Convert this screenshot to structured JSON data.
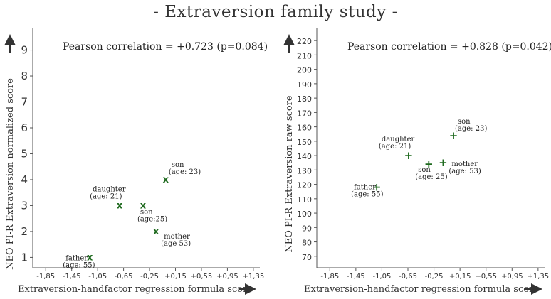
{
  "page_title": "- Extraversion family study -",
  "colors": {
    "marker": "#1f6a1f",
    "axis": "#555555",
    "text": "#222222"
  },
  "chart_data": [
    {
      "type": "scatter",
      "annotation": "Pearson correlation = +0.723 (p=0.084)",
      "xlabel": "Extraversion-handfactor regression formula score",
      "ylabel": "NEO PI-R Extraversion normalized score",
      "marker": "x",
      "x_ticks": [
        "-1,85",
        "-1,45",
        "-1,05",
        "-0,65",
        "-0,25",
        "+0,15",
        "+0,55",
        "+0,95",
        "+1,35"
      ],
      "y_ticks": [
        1,
        2,
        3,
        4,
        5,
        6,
        7,
        8,
        9
      ],
      "xlim": [
        -2.05,
        1.45
      ],
      "ylim": [
        0.6,
        9.7
      ],
      "points": [
        {
          "x": -1.17,
          "y": 1,
          "label": [
            "father",
            "(age: 55)"
          ]
        },
        {
          "x": -0.71,
          "y": 3,
          "label": [
            "daughter",
            "(age: 21)"
          ]
        },
        {
          "x": -0.35,
          "y": 3,
          "label": [
            "son",
            "(age:25)"
          ]
        },
        {
          "x": -0.15,
          "y": 2,
          "label": [
            "mother",
            "(age 53)"
          ]
        },
        {
          "x": 0.0,
          "y": 4,
          "label": [
            "son",
            "(age: 23)"
          ]
        }
      ]
    },
    {
      "type": "scatter",
      "annotation": "Pearson correlation = +0.828 (p=0.042)",
      "xlabel": "Extraversion-handfactor regression formula score",
      "ylabel": "NEO PI-R Extraversion raw score",
      "marker": "+",
      "x_ticks": [
        "-1,85",
        "-1,45",
        "-1,05",
        "-0,65",
        "-0,25",
        "+0,15",
        "+0,55",
        "+0,95",
        "+1,35"
      ],
      "y_ticks": [
        70,
        80,
        90,
        100,
        110,
        120,
        130,
        140,
        150,
        160,
        170,
        180,
        190,
        200,
        210,
        220
      ],
      "xlim": [
        -2.05,
        1.45
      ],
      "ylim": [
        62,
        226
      ],
      "points": [
        {
          "x": -1.13,
          "y": 118,
          "label": [
            "father",
            "(age: 55)"
          ]
        },
        {
          "x": -0.64,
          "y": 140,
          "label": [
            "daughter",
            "(age: 21)"
          ]
        },
        {
          "x": -0.33,
          "y": 134,
          "label": [
            "son",
            "(age: 25)"
          ]
        },
        {
          "x": -0.11,
          "y": 135,
          "label": [
            "mother",
            "(age: 53)"
          ]
        },
        {
          "x": 0.05,
          "y": 154,
          "label": [
            "son",
            "(age: 23)"
          ]
        }
      ]
    }
  ]
}
